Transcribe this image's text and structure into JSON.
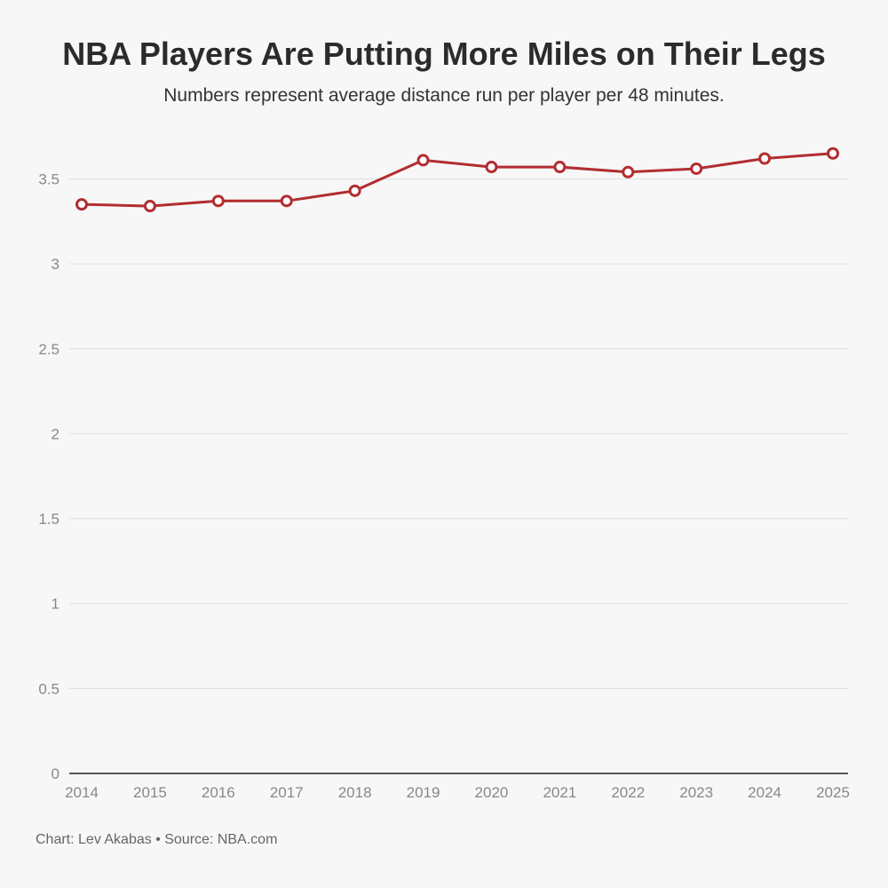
{
  "title": "NBA Players Are Putting More Miles on Their Legs",
  "subtitle": "Numbers represent average distance run per player per 48 minutes.",
  "footer": "Chart: Lev Akabas • Source: NBA.com",
  "colors": {
    "line": "#b22d30",
    "marker_fill": "#ffffff",
    "grid": "#dedede",
    "axis": "#222222",
    "tick_text": "#888888"
  },
  "chart_data": {
    "type": "line",
    "title": "NBA Players Are Putting More Miles on Their Legs",
    "subtitle": "Numbers represent average distance run per player per 48 minutes.",
    "xlabel": "",
    "ylabel": "",
    "x": [
      "2014",
      "2015",
      "2016",
      "2017",
      "2018",
      "2019",
      "2020",
      "2021",
      "2022",
      "2023",
      "2024",
      "2025"
    ],
    "series": [
      {
        "values": [
          3.35,
          3.34,
          3.37,
          3.37,
          3.43,
          3.61,
          3.57,
          3.57,
          3.54,
          3.56,
          3.62,
          3.65
        ]
      }
    ],
    "ylim": [
      0,
      3.7
    ],
    "yticks": [
      0,
      0.5,
      1,
      1.5,
      2,
      2.5,
      3,
      3.5
    ],
    "ytick_labels": [
      "0",
      "0.5",
      "1",
      "1.5",
      "2",
      "2.5",
      "3",
      "3.5"
    ],
    "grid": true,
    "markers": "hollow-circle"
  }
}
